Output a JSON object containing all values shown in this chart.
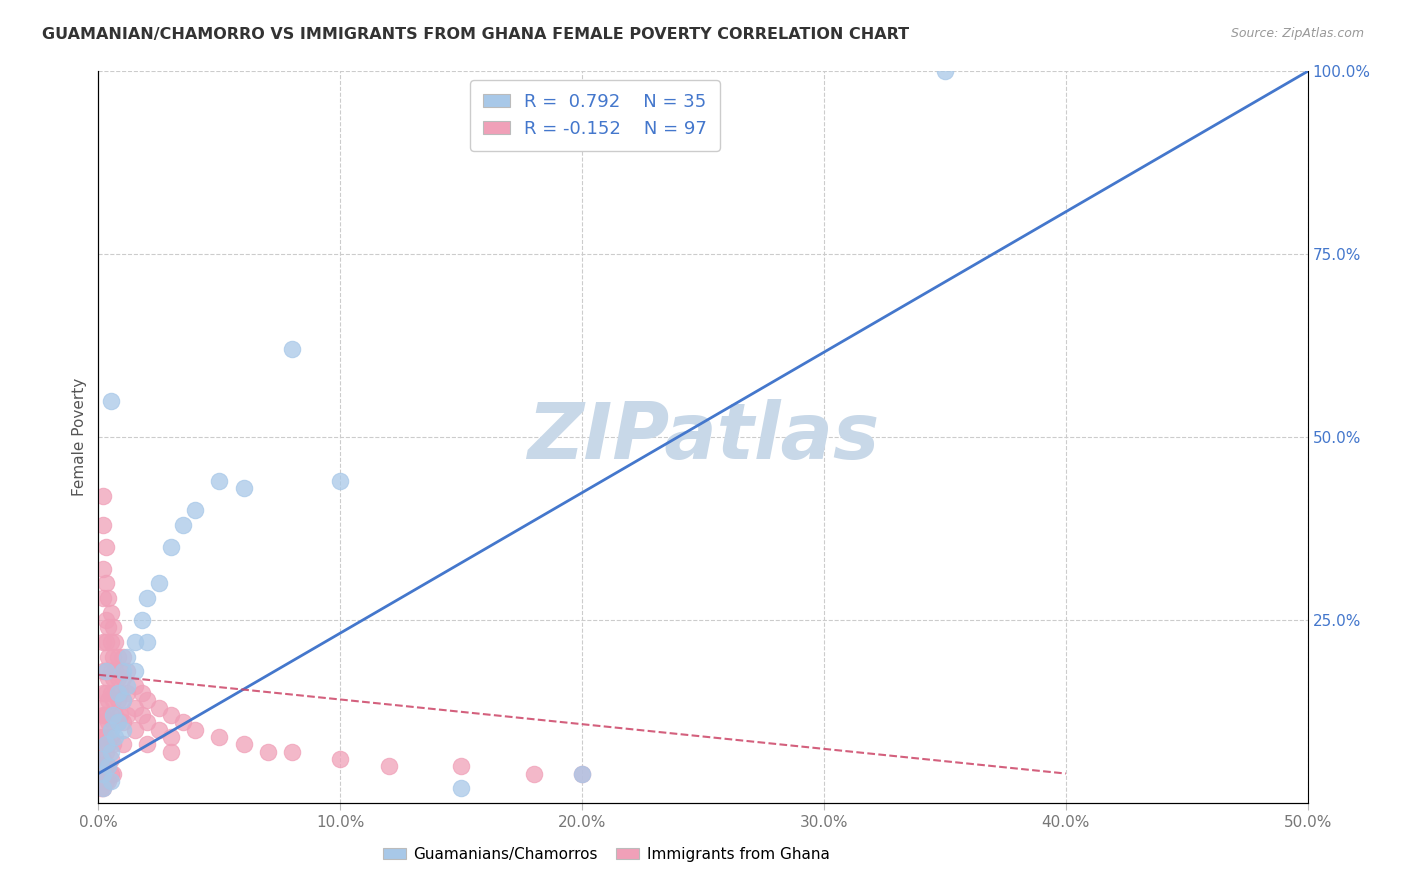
{
  "title": "GUAMANIAN/CHAMORRO VS IMMIGRANTS FROM GHANA FEMALE POVERTY CORRELATION CHART",
  "source": "Source: ZipAtlas.com",
  "ylabel": "Female Poverty",
  "xlim": [
    0,
    0.5
  ],
  "ylim": [
    0,
    1.0
  ],
  "xticks": [
    0.0,
    0.1,
    0.2,
    0.3,
    0.4,
    0.5
  ],
  "xticklabels": [
    "0.0%",
    "10.0%",
    "20.0%",
    "30.0%",
    "40.0%",
    "50.0%"
  ],
  "yticks": [
    0.0,
    0.25,
    0.5,
    0.75,
    1.0
  ],
  "yticklabels": [
    "",
    "25.0%",
    "50.0%",
    "75.0%",
    "100.0%"
  ],
  "blue_color": "#A8C8E8",
  "pink_color": "#F0A0B8",
  "blue_line_color": "#4477CC",
  "pink_line_color": "#CC4466",
  "watermark": "ZIPatlas",
  "watermark_color": "#C8D8E8",
  "legend_R_blue": "R =  0.792",
  "legend_N_blue": "N = 35",
  "legend_R_pink": "R = -0.152",
  "legend_N_pink": "N = 97",
  "blue_points": [
    [
      0.001,
      0.06
    ],
    [
      0.002,
      0.04
    ],
    [
      0.002,
      0.02
    ],
    [
      0.003,
      0.08
    ],
    [
      0.004,
      0.05
    ],
    [
      0.005,
      0.1
    ],
    [
      0.005,
      0.07
    ],
    [
      0.005,
      0.03
    ],
    [
      0.006,
      0.12
    ],
    [
      0.007,
      0.09
    ],
    [
      0.008,
      0.15
    ],
    [
      0.008,
      0.11
    ],
    [
      0.01,
      0.18
    ],
    [
      0.01,
      0.14
    ],
    [
      0.01,
      0.1
    ],
    [
      0.012,
      0.2
    ],
    [
      0.012,
      0.16
    ],
    [
      0.015,
      0.22
    ],
    [
      0.015,
      0.18
    ],
    [
      0.018,
      0.25
    ],
    [
      0.02,
      0.28
    ],
    [
      0.02,
      0.22
    ],
    [
      0.025,
      0.3
    ],
    [
      0.03,
      0.35
    ],
    [
      0.035,
      0.38
    ],
    [
      0.04,
      0.4
    ],
    [
      0.05,
      0.44
    ],
    [
      0.06,
      0.43
    ],
    [
      0.08,
      0.62
    ],
    [
      0.1,
      0.44
    ],
    [
      0.15,
      0.02
    ],
    [
      0.2,
      0.04
    ],
    [
      0.35,
      1.0
    ],
    [
      0.003,
      0.18
    ],
    [
      0.005,
      0.55
    ]
  ],
  "pink_points": [
    [
      0.001,
      0.13
    ],
    [
      0.001,
      0.11
    ],
    [
      0.001,
      0.09
    ],
    [
      0.001,
      0.07
    ],
    [
      0.001,
      0.05
    ],
    [
      0.001,
      0.03
    ],
    [
      0.002,
      0.42
    ],
    [
      0.002,
      0.38
    ],
    [
      0.002,
      0.32
    ],
    [
      0.002,
      0.28
    ],
    [
      0.002,
      0.22
    ],
    [
      0.002,
      0.18
    ],
    [
      0.002,
      0.15
    ],
    [
      0.002,
      0.12
    ],
    [
      0.002,
      0.09
    ],
    [
      0.002,
      0.06
    ],
    [
      0.002,
      0.04
    ],
    [
      0.003,
      0.35
    ],
    [
      0.003,
      0.3
    ],
    [
      0.003,
      0.25
    ],
    [
      0.003,
      0.22
    ],
    [
      0.003,
      0.18
    ],
    [
      0.003,
      0.15
    ],
    [
      0.003,
      0.12
    ],
    [
      0.003,
      0.09
    ],
    [
      0.003,
      0.07
    ],
    [
      0.003,
      0.05
    ],
    [
      0.004,
      0.28
    ],
    [
      0.004,
      0.24
    ],
    [
      0.004,
      0.2
    ],
    [
      0.004,
      0.17
    ],
    [
      0.004,
      0.14
    ],
    [
      0.004,
      0.11
    ],
    [
      0.004,
      0.08
    ],
    [
      0.004,
      0.05
    ],
    [
      0.005,
      0.26
    ],
    [
      0.005,
      0.22
    ],
    [
      0.005,
      0.18
    ],
    [
      0.005,
      0.15
    ],
    [
      0.005,
      0.12
    ],
    [
      0.005,
      0.09
    ],
    [
      0.005,
      0.06
    ],
    [
      0.006,
      0.24
    ],
    [
      0.006,
      0.2
    ],
    [
      0.006,
      0.17
    ],
    [
      0.006,
      0.14
    ],
    [
      0.006,
      0.11
    ],
    [
      0.006,
      0.08
    ],
    [
      0.007,
      0.22
    ],
    [
      0.007,
      0.18
    ],
    [
      0.007,
      0.15
    ],
    [
      0.007,
      0.12
    ],
    [
      0.008,
      0.2
    ],
    [
      0.008,
      0.17
    ],
    [
      0.008,
      0.14
    ],
    [
      0.008,
      0.11
    ],
    [
      0.009,
      0.18
    ],
    [
      0.009,
      0.15
    ],
    [
      0.009,
      0.12
    ],
    [
      0.01,
      0.2
    ],
    [
      0.01,
      0.17
    ],
    [
      0.01,
      0.14
    ],
    [
      0.01,
      0.11
    ],
    [
      0.01,
      0.08
    ],
    [
      0.012,
      0.18
    ],
    [
      0.012,
      0.15
    ],
    [
      0.012,
      0.12
    ],
    [
      0.015,
      0.16
    ],
    [
      0.015,
      0.13
    ],
    [
      0.015,
      0.1
    ],
    [
      0.018,
      0.15
    ],
    [
      0.018,
      0.12
    ],
    [
      0.02,
      0.14
    ],
    [
      0.02,
      0.11
    ],
    [
      0.025,
      0.13
    ],
    [
      0.025,
      0.1
    ],
    [
      0.03,
      0.12
    ],
    [
      0.03,
      0.09
    ],
    [
      0.035,
      0.11
    ],
    [
      0.04,
      0.1
    ],
    [
      0.05,
      0.09
    ],
    [
      0.06,
      0.08
    ],
    [
      0.07,
      0.07
    ],
    [
      0.08,
      0.07
    ],
    [
      0.1,
      0.06
    ],
    [
      0.12,
      0.05
    ],
    [
      0.15,
      0.05
    ],
    [
      0.18,
      0.04
    ],
    [
      0.2,
      0.04
    ],
    [
      0.001,
      0.02
    ],
    [
      0.002,
      0.02
    ],
    [
      0.003,
      0.03
    ],
    [
      0.004,
      0.03
    ],
    [
      0.005,
      0.04
    ],
    [
      0.006,
      0.04
    ],
    [
      0.02,
      0.08
    ],
    [
      0.03,
      0.07
    ]
  ],
  "blue_line": [
    [
      0.0,
      0.04
    ],
    [
      0.5,
      1.0
    ]
  ],
  "pink_line": [
    [
      0.0,
      0.175
    ],
    [
      0.4,
      0.04
    ]
  ],
  "background_color": "#FFFFFF",
  "grid_color": "#CCCCCC",
  "title_color": "#333333",
  "axis_label_color": "#555555",
  "tick_right_color": "#4477CC",
  "tick_bottom_color": "#777777"
}
